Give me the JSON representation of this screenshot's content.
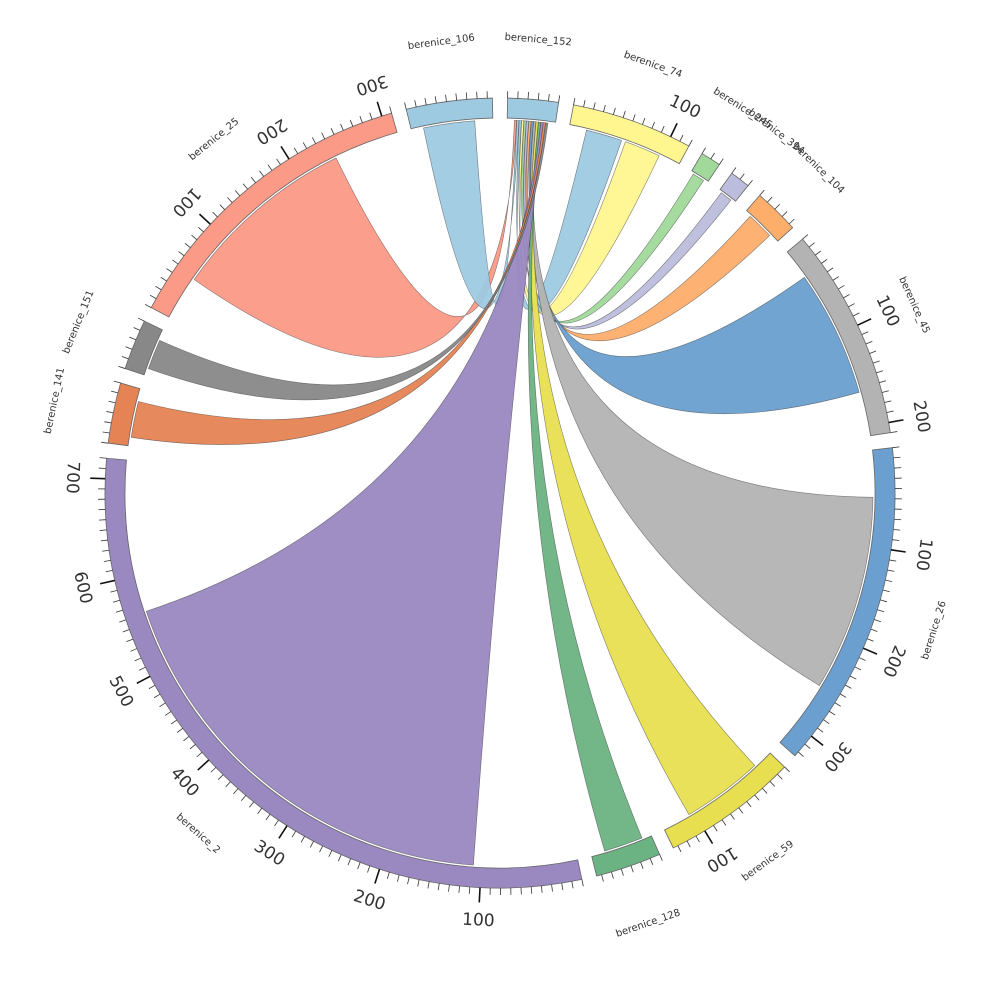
{
  "chart_data": {
    "type": "chord",
    "title": "",
    "tick_step": 10,
    "label_step": 100,
    "segments": [
      {
        "name": "berenice_152",
        "length": 50,
        "color": "#9ecae1"
      },
      {
        "name": "berenice_74",
        "length": 120,
        "color": "#fff68f"
      },
      {
        "name": "berenice_245",
        "length": 20,
        "color": "#a1d99b"
      },
      {
        "name": "berenice_394",
        "length": 20,
        "color": "#bcbddc"
      },
      {
        "name": "berenice_104",
        "length": 45,
        "color": "#fdae6b"
      },
      {
        "name": "berenice_45",
        "length": 210,
        "color": "#b3b3b3"
      },
      {
        "name": "berenice_26",
        "length": 325,
        "color": "#6a9fcf"
      },
      {
        "name": "berenice_59",
        "length": 135,
        "color": "#e8df50"
      },
      {
        "name": "berenice_128",
        "length": 65,
        "color": "#6cb383"
      },
      {
        "name": "berenice_2",
        "length": 720,
        "color": "#9a88c1"
      },
      {
        "name": "berenice_141",
        "length": 60,
        "color": "#e58354"
      },
      {
        "name": "berenice_151",
        "length": 50,
        "color": "#888888"
      },
      {
        "name": "berenice_25",
        "length": 310,
        "color": "#fb9a86"
      },
      {
        "name": "berenice_106",
        "length": 85,
        "color": "#9ecae1"
      }
    ],
    "links": [
      {
        "source": "berenice_152",
        "target": "berenice_25",
        "color": "#fb9a86"
      },
      {
        "source": "berenice_152",
        "target": "berenice_106",
        "color": "#9ecae1"
      },
      {
        "source": "berenice_152",
        "target": "berenice_74",
        "color": "#9ecae1"
      },
      {
        "source": "berenice_152",
        "target": "berenice_74",
        "color": "#fff68f"
      },
      {
        "source": "berenice_152",
        "target": "berenice_245",
        "color": "#a1d99b"
      },
      {
        "source": "berenice_152",
        "target": "berenice_394",
        "color": "#bcbddc"
      },
      {
        "source": "berenice_152",
        "target": "berenice_104",
        "color": "#fdae6b"
      },
      {
        "source": "berenice_152",
        "target": "berenice_45",
        "color": "#6a9fcf"
      },
      {
        "source": "berenice_152",
        "target": "berenice_26",
        "color": "#b3b3b3"
      },
      {
        "source": "berenice_152",
        "target": "berenice_59",
        "color": "#e8df50"
      },
      {
        "source": "berenice_152",
        "target": "berenice_128",
        "color": "#6cb383"
      },
      {
        "source": "berenice_152",
        "target": "berenice_2",
        "color": "#9a88c1"
      },
      {
        "source": "berenice_152",
        "target": "berenice_141",
        "color": "#e58354"
      },
      {
        "source": "berenice_152",
        "target": "berenice_151",
        "color": "#888888"
      }
    ]
  }
}
